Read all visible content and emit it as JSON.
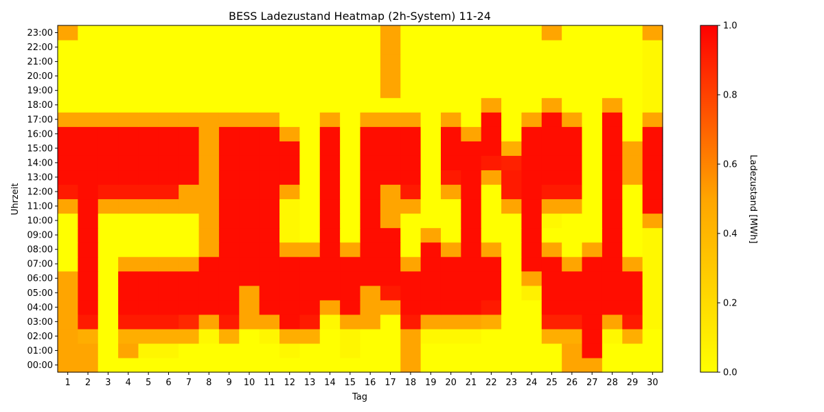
{
  "chart_data": {
    "type": "heatmap",
    "title": "BESS Ladezustand Heatmap (2h-System) 11-24",
    "xlabel": "Tag",
    "ylabel": "Uhrzeit",
    "colorbar_label": "Ladezustand [MWh]",
    "colorbar_ticks": [
      "0.0",
      "0.2",
      "0.4",
      "0.6",
      "0.8",
      "1.0"
    ],
    "value_range": [
      0,
      1
    ],
    "colormap": [
      "#ffff00",
      "#ffa500",
      "#ff0000"
    ],
    "days": [
      "1",
      "2",
      "3",
      "4",
      "5",
      "6",
      "7",
      "8",
      "9",
      "10",
      "11",
      "12",
      "13",
      "14",
      "15",
      "16",
      "17",
      "18",
      "19",
      "20",
      "21",
      "22",
      "23",
      "24",
      "25",
      "26",
      "27",
      "28",
      "29",
      "30"
    ],
    "hours": [
      "00:00",
      "01:00",
      "02:00",
      "03:00",
      "04:00",
      "05:00",
      "06:00",
      "07:00",
      "08:00",
      "09:00",
      "10:00",
      "11:00",
      "12:00",
      "13:00",
      "14:00",
      "15:00",
      "16:00",
      "17:00",
      "18:00",
      "19:00",
      "20:00",
      "21:00",
      "22:00",
      "23:00"
    ],
    "values": [
      [
        0.5,
        0.5,
        0,
        0,
        0,
        0,
        0,
        0,
        0,
        0,
        0,
        0,
        0,
        0,
        0,
        0,
        0,
        0.5,
        0,
        0,
        0,
        0,
        0,
        0,
        0,
        0.5,
        0.5,
        0,
        0,
        0
      ],
      [
        0.5,
        0.5,
        0,
        0.5,
        0.05,
        0.05,
        0,
        0,
        0,
        0,
        0,
        0.04,
        0,
        0,
        0.05,
        0,
        0,
        0.5,
        0,
        0,
        0,
        0,
        0,
        0,
        0,
        0.5,
        0.96,
        0,
        0,
        0
      ],
      [
        0.5,
        0.45,
        0,
        0.45,
        0.45,
        0.45,
        0.45,
        0.04,
        0.45,
        0,
        0.05,
        0.45,
        0.45,
        0,
        0.05,
        0,
        0,
        0.5,
        0.04,
        0.04,
        0.04,
        0,
        0,
        0,
        0.45,
        0.45,
        0.96,
        0.04,
        0.45,
        0
      ],
      [
        0.5,
        0.92,
        0,
        0.92,
        0.92,
        0.92,
        0.88,
        0.5,
        0.92,
        0.5,
        0.5,
        0.96,
        0.92,
        0.04,
        0.5,
        0.5,
        0,
        0.92,
        0.5,
        0.5,
        0.5,
        0.46,
        0,
        0,
        0.9,
        0.9,
        0.96,
        0.5,
        0.92,
        0.04
      ],
      [
        0.5,
        0.96,
        0,
        0.96,
        0.96,
        0.96,
        0.96,
        0.96,
        0.96,
        0.5,
        0.96,
        0.96,
        0.96,
        0.5,
        0.96,
        0.5,
        0.5,
        0.96,
        0.96,
        0.96,
        0.96,
        0.92,
        0,
        0,
        0.96,
        0.96,
        0.96,
        0.96,
        0.96,
        0.04
      ],
      [
        0.5,
        0.96,
        0,
        0.96,
        0.96,
        0.96,
        0.96,
        0.96,
        0.96,
        0.5,
        0.96,
        0.96,
        0.96,
        0.96,
        0.96,
        0.5,
        0.92,
        0.96,
        0.96,
        0.96,
        0.96,
        0.96,
        0,
        0.08,
        0.96,
        0.96,
        0.96,
        0.96,
        0.96,
        0.04
      ],
      [
        0.5,
        0.96,
        0,
        0.96,
        0.96,
        0.96,
        0.96,
        0.96,
        0.96,
        0.96,
        0.96,
        0.96,
        0.96,
        0.96,
        0.96,
        0.96,
        0.96,
        0.96,
        0.96,
        0.96,
        0.96,
        0.96,
        0,
        0.5,
        0.96,
        0.96,
        0.96,
        0.96,
        0.96,
        0.04
      ],
      [
        0,
        0.96,
        0,
        0.5,
        0.5,
        0.5,
        0.5,
        0.96,
        0.96,
        0.96,
        0.96,
        0.96,
        0.96,
        0.96,
        0.96,
        0.96,
        0.96,
        0.5,
        0.96,
        0.96,
        0.96,
        0.96,
        0,
        0.96,
        0.96,
        0.5,
        0.96,
        0.96,
        0.5,
        0.04
      ],
      [
        0,
        0.96,
        0,
        0,
        0,
        0,
        0,
        0.5,
        0.96,
        0.96,
        0.96,
        0.5,
        0.5,
        0.96,
        0.5,
        0.96,
        0.96,
        0,
        0.96,
        0.5,
        0.96,
        0.5,
        0,
        0.96,
        0.5,
        0,
        0.5,
        0.96,
        0,
        0.04
      ],
      [
        0,
        0.96,
        0,
        0,
        0,
        0,
        0,
        0.5,
        0.96,
        0.96,
        0.96,
        0.04,
        0,
        0.96,
        0,
        0.96,
        0.96,
        0,
        0.5,
        0,
        0.96,
        0,
        0,
        0.96,
        0,
        0,
        0,
        0.96,
        0,
        0.04
      ],
      [
        0,
        0.96,
        0,
        0,
        0,
        0,
        0,
        0.5,
        0.96,
        0.96,
        0.96,
        0.04,
        0,
        0.96,
        0,
        0.96,
        0.5,
        0,
        0,
        0,
        0.96,
        0,
        0,
        0.96,
        0.04,
        0,
        0,
        0.96,
        0,
        0.5
      ],
      [
        0.5,
        0.96,
        0.5,
        0.5,
        0.5,
        0.5,
        0.5,
        0.5,
        0.96,
        0.96,
        0.96,
        0.04,
        0,
        0.96,
        0,
        0.96,
        0.5,
        0.5,
        0,
        0,
        0.96,
        0,
        0.5,
        0.96,
        0.5,
        0.5,
        0,
        0.96,
        0,
        0.96
      ],
      [
        0.92,
        0.96,
        0.92,
        0.92,
        0.92,
        0.92,
        0.5,
        0.5,
        0.96,
        0.96,
        0.96,
        0.5,
        0,
        0.96,
        0,
        0.96,
        0.5,
        0.92,
        0,
        0.5,
        0.96,
        0,
        0.92,
        0.96,
        0.92,
        0.92,
        0,
        0.96,
        0,
        0.96
      ],
      [
        0.96,
        0.96,
        0.96,
        0.96,
        0.96,
        0.96,
        0.96,
        0.5,
        0.96,
        0.96,
        0.96,
        0.96,
        0,
        0.96,
        0,
        0.96,
        0.96,
        0.96,
        0,
        0.92,
        0.96,
        0.5,
        0.92,
        0.96,
        0.96,
        0.96,
        0,
        0.96,
        0.5,
        0.96
      ],
      [
        0.96,
        0.96,
        0.96,
        0.96,
        0.96,
        0.96,
        0.96,
        0.5,
        0.96,
        0.96,
        0.96,
        0.96,
        0,
        0.96,
        0,
        0.96,
        0.96,
        0.96,
        0,
        0.96,
        0.96,
        0.92,
        0.9,
        0.96,
        0.96,
        0.96,
        0,
        0.96,
        0.5,
        0.96
      ],
      [
        0.96,
        0.96,
        0.96,
        0.96,
        0.96,
        0.96,
        0.96,
        0.5,
        0.96,
        0.96,
        0.96,
        0.96,
        0,
        0.96,
        0,
        0.96,
        0.96,
        0.96,
        0,
        0.96,
        0.96,
        0.96,
        0.45,
        0.96,
        0.96,
        0.96,
        0,
        0.96,
        0.5,
        0.96
      ],
      [
        0.96,
        0.96,
        0.96,
        0.96,
        0.96,
        0.96,
        0.96,
        0.5,
        0.96,
        0.96,
        0.96,
        0.5,
        0,
        0.96,
        0,
        0.96,
        0.96,
        0.96,
        0,
        0.96,
        0.5,
        0.96,
        0,
        0.96,
        0.96,
        0.96,
        0,
        0.96,
        0,
        0.96
      ],
      [
        0.5,
        0.5,
        0.5,
        0.5,
        0.5,
        0.5,
        0.5,
        0.5,
        0.5,
        0.5,
        0.5,
        0,
        0,
        0.5,
        0,
        0.5,
        0.5,
        0.5,
        0,
        0.5,
        0,
        0.96,
        0,
        0.5,
        0.96,
        0.5,
        0,
        0.96,
        0,
        0.5
      ],
      [
        0,
        0,
        0,
        0,
        0,
        0,
        0,
        0,
        0,
        0,
        0,
        0,
        0,
        0,
        0,
        0,
        0,
        0,
        0,
        0,
        0,
        0.5,
        0,
        0,
        0.5,
        0,
        0,
        0.5,
        0,
        0.04
      ],
      [
        0,
        0,
        0,
        0,
        0,
        0,
        0,
        0,
        0,
        0,
        0,
        0,
        0,
        0,
        0,
        0,
        0.5,
        0,
        0,
        0,
        0,
        0,
        0,
        0,
        0,
        0,
        0,
        0,
        0,
        0.04
      ],
      [
        0,
        0,
        0,
        0,
        0,
        0,
        0,
        0,
        0,
        0,
        0,
        0,
        0,
        0,
        0,
        0,
        0.5,
        0,
        0,
        0,
        0,
        0,
        0,
        0,
        0,
        0,
        0,
        0,
        0,
        0.04
      ],
      [
        0,
        0,
        0,
        0,
        0,
        0,
        0,
        0,
        0,
        0,
        0,
        0,
        0,
        0,
        0,
        0,
        0.5,
        0,
        0,
        0,
        0,
        0,
        0,
        0,
        0,
        0,
        0,
        0,
        0,
        0.04
      ],
      [
        0,
        0,
        0,
        0,
        0,
        0,
        0,
        0,
        0,
        0,
        0,
        0,
        0,
        0,
        0,
        0,
        0.5,
        0,
        0,
        0,
        0,
        0,
        0,
        0,
        0,
        0,
        0,
        0,
        0,
        0.04
      ],
      [
        0.5,
        0,
        0,
        0,
        0,
        0,
        0,
        0,
        0,
        0,
        0,
        0,
        0,
        0,
        0,
        0,
        0.5,
        0,
        0,
        0,
        0,
        0,
        0,
        0,
        0.5,
        0,
        0,
        0,
        0,
        0.5
      ]
    ]
  }
}
